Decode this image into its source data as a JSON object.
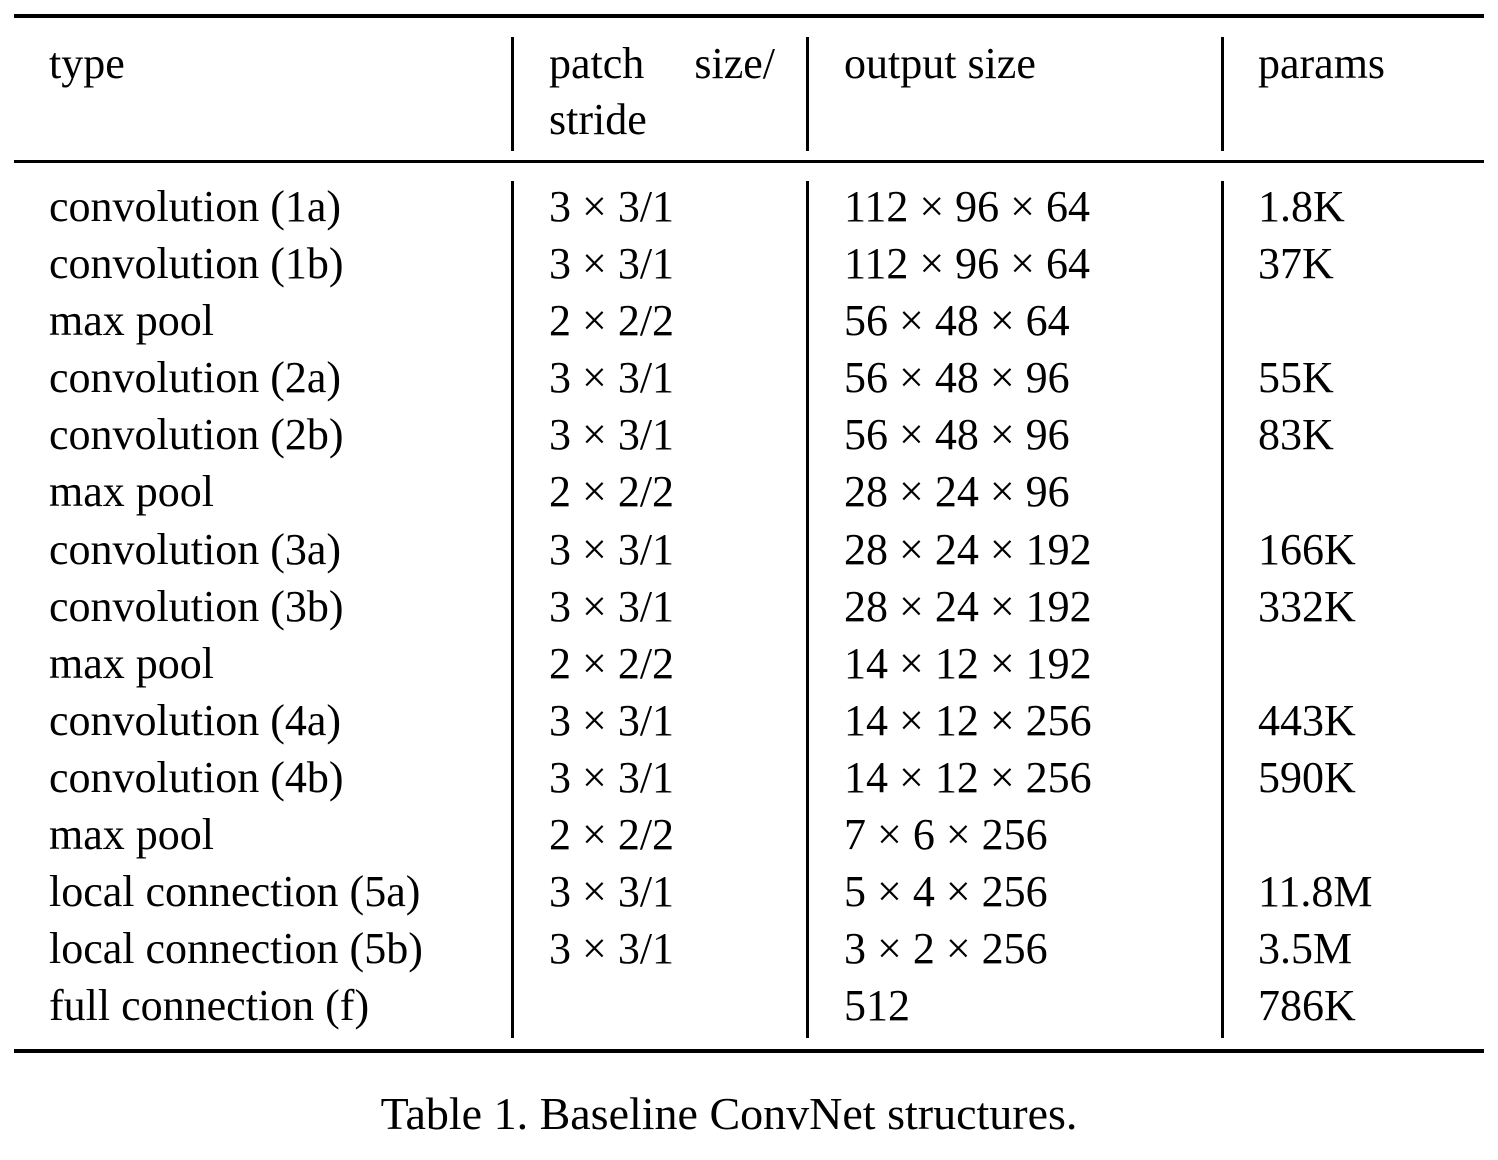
{
  "table": {
    "headers": [
      "type",
      "patch size/ stride",
      "output size",
      "params"
    ],
    "rows": [
      [
        "convolution (1a)",
        "3 × 3/1",
        "112 × 96 × 64",
        "1.8K"
      ],
      [
        "convolution (1b)",
        "3 × 3/1",
        "112 × 96 × 64",
        "37K"
      ],
      [
        "max pool",
        "2 × 2/2",
        "56 × 48 × 64",
        ""
      ],
      [
        "convolution (2a)",
        "3 × 3/1",
        "56 × 48 × 96",
        "55K"
      ],
      [
        "convolution (2b)",
        "3 × 3/1",
        "56 × 48 × 96",
        "83K"
      ],
      [
        "max pool",
        "2 × 2/2",
        "28 × 24 × 96",
        ""
      ],
      [
        "convolution (3a)",
        "3 × 3/1",
        "28 × 24 × 192",
        "166K"
      ],
      [
        "convolution (3b)",
        "3 × 3/1",
        "28 × 24 × 192",
        "332K"
      ],
      [
        "max pool",
        "2 × 2/2",
        "14 × 12 × 192",
        ""
      ],
      [
        "convolution (4a)",
        "3 × 3/1",
        "14 × 12 × 256",
        "443K"
      ],
      [
        "convolution (4b)",
        "3 × 3/1",
        "14 × 12 × 256",
        "590K"
      ],
      [
        "max pool",
        "2 × 2/2",
        "7 × 6 × 256",
        ""
      ],
      [
        "local connection (5a)",
        "3 × 3/1",
        "5 × 4 × 256",
        "11.8M"
      ],
      [
        "local connection (5b)",
        "3 × 3/1",
        "3 × 2 × 256",
        "3.5M"
      ],
      [
        "full connection (f)",
        "",
        "512",
        "786K"
      ]
    ]
  },
  "caption": "Table 1. Baseline ConvNet structures."
}
